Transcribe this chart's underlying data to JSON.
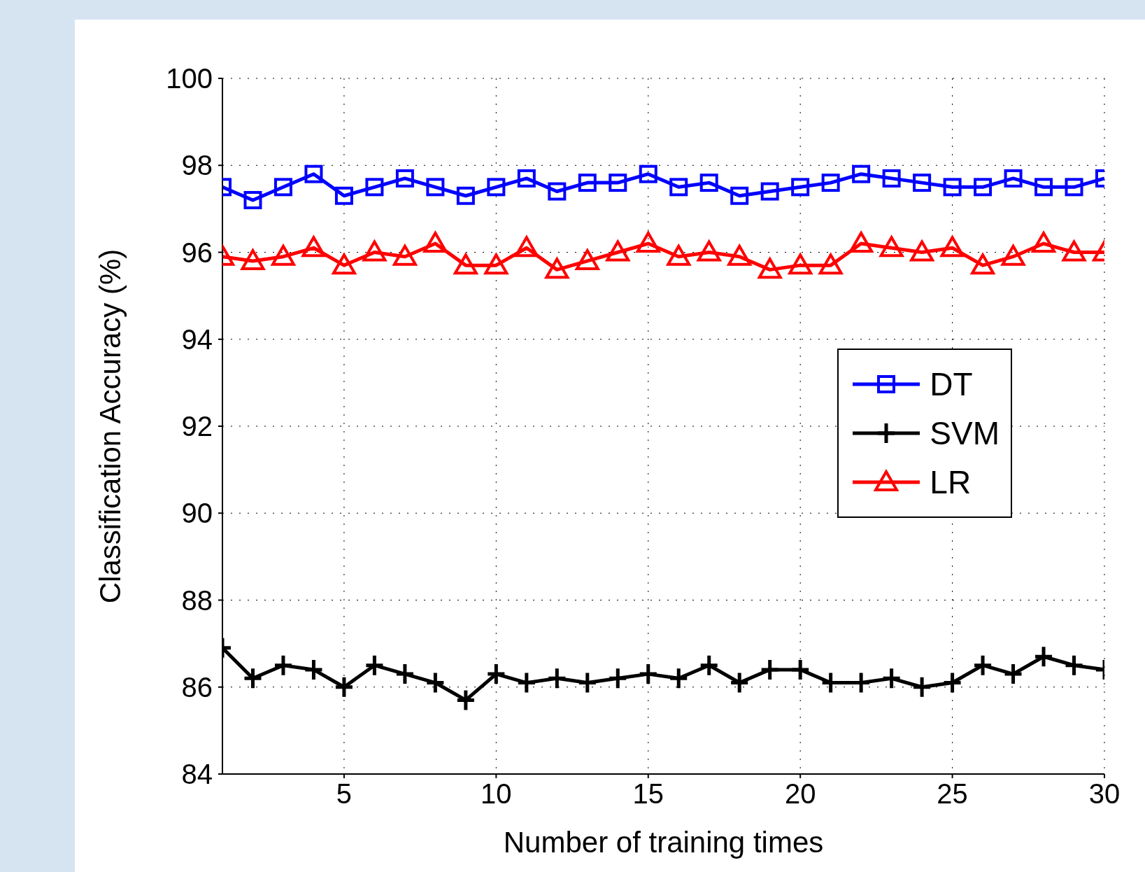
{
  "chart_data": {
    "type": "line",
    "xlabel": "Number of training times",
    "ylabel": "Classification Accuracy (%)",
    "x": [
      1,
      2,
      3,
      4,
      5,
      6,
      7,
      8,
      9,
      10,
      11,
      12,
      13,
      14,
      15,
      16,
      17,
      18,
      19,
      20,
      21,
      22,
      23,
      24,
      25,
      26,
      27,
      28,
      29,
      30
    ],
    "xlim": [
      1,
      30
    ],
    "xticks": [
      5,
      10,
      15,
      20,
      25,
      30
    ],
    "ylim": [
      84,
      100
    ],
    "yticks": [
      84,
      86,
      88,
      90,
      92,
      94,
      96,
      98,
      100
    ],
    "grid": true,
    "legend": "right",
    "line_style": "solid",
    "series": [
      {
        "name": "DT",
        "color": "#0000ff",
        "marker": "square",
        "values": [
          97.5,
          97.2,
          97.5,
          97.8,
          97.3,
          97.5,
          97.7,
          97.5,
          97.3,
          97.5,
          97.7,
          97.4,
          97.6,
          97.6,
          97.8,
          97.5,
          97.6,
          97.3,
          97.4,
          97.5,
          97.6,
          97.8,
          97.7,
          97.6,
          97.5,
          97.5,
          97.7,
          97.5,
          97.5,
          97.7
        ]
      },
      {
        "name": "SVM",
        "color": "#000000",
        "marker": "cross",
        "values": [
          86.9,
          86.2,
          86.5,
          86.4,
          86.0,
          86.5,
          86.3,
          86.1,
          85.7,
          86.3,
          86.1,
          86.2,
          86.1,
          86.2,
          86.3,
          86.2,
          86.5,
          86.1,
          86.4,
          86.4,
          86.1,
          86.1,
          86.2,
          86.0,
          86.1,
          86.5,
          86.3,
          86.7,
          86.5,
          86.4
        ]
      },
      {
        "name": "LR",
        "color": "#ff0000",
        "marker": "triangle",
        "values": [
          95.9,
          95.8,
          95.9,
          96.1,
          95.7,
          96.0,
          95.9,
          96.2,
          95.7,
          95.7,
          96.1,
          95.6,
          95.8,
          96.0,
          96.2,
          95.9,
          96.0,
          95.9,
          95.6,
          95.7,
          95.7,
          96.2,
          96.1,
          96.0,
          96.1,
          95.7,
          95.9,
          96.2,
          96.0,
          96.0
        ]
      }
    ]
  }
}
